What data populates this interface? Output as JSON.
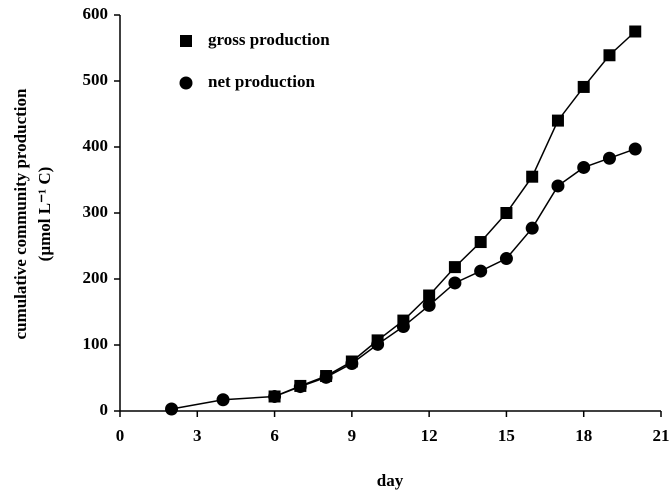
{
  "chart_data": {
    "type": "line",
    "xlabel": "day",
    "ylabel": [
      "cumulative community production",
      "(µmol L⁻¹ C)"
    ],
    "xlim": [
      0,
      21
    ],
    "xticks": [
      0,
      3,
      6,
      9,
      12,
      15,
      18,
      21
    ],
    "ylim": [
      0,
      600
    ],
    "yticks": [
      0,
      100,
      200,
      300,
      400,
      500,
      600
    ],
    "legend": "upper left",
    "series": [
      {
        "name": "gross production",
        "color": "#000000",
        "marker": "square",
        "x": [
          6,
          7,
          8,
          9,
          10,
          11,
          12,
          13,
          14,
          15,
          16,
          17,
          18,
          19,
          20
        ],
        "values": [
          22,
          38,
          53,
          75,
          107,
          137,
          175,
          218,
          256,
          300,
          355,
          440,
          491,
          539,
          575
        ]
      },
      {
        "name": "net production",
        "color": "#000000",
        "marker": "circle",
        "x": [
          2,
          4,
          6,
          7,
          8,
          9,
          10,
          11,
          12,
          13,
          14,
          15,
          16,
          17,
          18,
          19,
          20
        ],
        "values": [
          3,
          17,
          22,
          37,
          51,
          72,
          101,
          128,
          160,
          194,
          212,
          231,
          277,
          341,
          369,
          383,
          397
        ]
      }
    ]
  }
}
